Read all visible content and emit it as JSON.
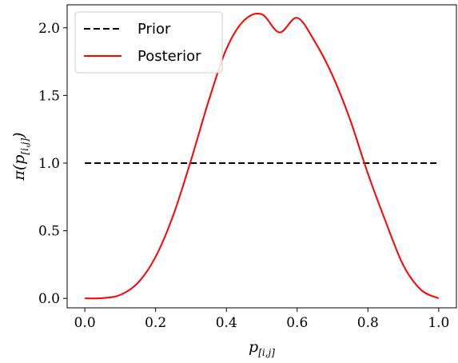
{
  "chart_data": {
    "type": "line",
    "xlabel": "p",
    "xlabel_sub": "[i,j]",
    "ylabel": "π(p",
    "ylabel_sub": "[i,j]",
    "ylabel_close": ")",
    "xlim": [
      -0.05,
      1.05
    ],
    "ylim": [
      -0.07,
      2.17
    ],
    "xticks": [
      0.0,
      0.2,
      0.4,
      0.6,
      0.8,
      1.0
    ],
    "xtick_labels": [
      "0.0",
      "0.2",
      "0.4",
      "0.6",
      "0.8",
      "1.0"
    ],
    "yticks": [
      0.0,
      0.5,
      1.0,
      1.5,
      2.0
    ],
    "ytick_labels": [
      "0.0",
      "0.5",
      "1.0",
      "1.5",
      "2.0"
    ],
    "grid": false,
    "legend_position": "top-left",
    "series": [
      {
        "name": "Prior",
        "style": "dashed",
        "color": "#000000",
        "x": [
          0.0,
          1.0
        ],
        "y": [
          1.0,
          1.0
        ]
      },
      {
        "name": "Posterior",
        "style": "solid",
        "color": "#ff0000",
        "x": [
          0.0,
          0.05,
          0.1,
          0.15,
          0.2,
          0.25,
          0.3,
          0.35,
          0.4,
          0.45,
          0.5,
          0.55,
          0.6,
          0.65,
          0.7,
          0.75,
          0.8,
          0.85,
          0.9,
          0.95,
          1.0
        ],
        "y": [
          0.0,
          0.0017,
          0.0252,
          0.1148,
          0.3072,
          0.6152,
          1.0206,
          1.4604,
          1.8432,
          2.0546,
          2.1,
          1.9657,
          2.0736,
          1.8978,
          1.6464,
          1.3183,
          0.9216,
          0.5687,
          0.2449,
          0.0632,
          0.0
        ]
      }
    ]
  }
}
